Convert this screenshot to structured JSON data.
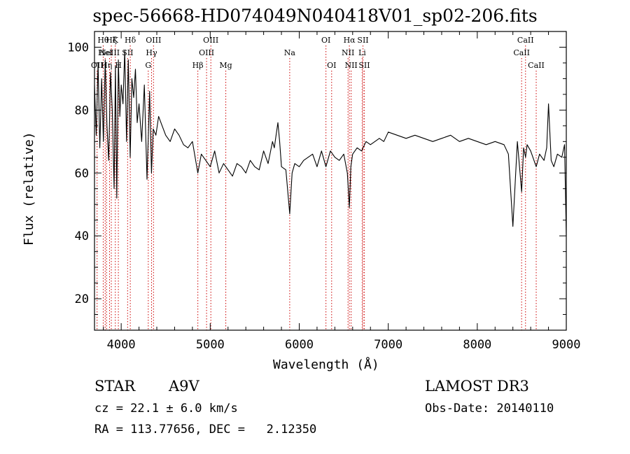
{
  "chart_data": {
    "type": "line",
    "title": "spec-56668-HD074049N040418V01_sp02-206.fits",
    "xlabel": "Wavelength (Å)",
    "ylabel": "Flux (relative)",
    "xlim": [
      3700,
      9000
    ],
    "ylim": [
      10,
      105
    ],
    "xticks": [
      4000,
      5000,
      6000,
      7000,
      8000,
      9000
    ],
    "yticks": [
      20,
      40,
      60,
      80,
      100
    ],
    "grid": false,
    "line_color": "#000000",
    "marker_color": "#cc0000",
    "series": [
      {
        "x": [
          3700,
          3720,
          3740,
          3760,
          3780,
          3800,
          3820,
          3840,
          3860,
          3880,
          3900,
          3920,
          3935,
          3950,
          3968,
          3985,
          4000,
          4020,
          4040,
          4060,
          4080,
          4101,
          4120,
          4140,
          4160,
          4180,
          4200,
          4230,
          4260,
          4290,
          4320,
          4340,
          4360,
          4390,
          4420,
          4460,
          4500,
          4550,
          4600,
          4650,
          4700,
          4750,
          4800,
          4861,
          4900,
          4950,
          5000,
          5050,
          5100,
          5150,
          5200,
          5250,
          5300,
          5350,
          5400,
          5450,
          5500,
          5550,
          5600,
          5650,
          5700,
          5720,
          5740,
          5760,
          5780,
          5800,
          5850,
          5893,
          5920,
          5950,
          6000,
          6050,
          6100,
          6150,
          6200,
          6250,
          6300,
          6350,
          6400,
          6450,
          6500,
          6540,
          6563,
          6580,
          6600,
          6650,
          6700,
          6750,
          6800,
          6850,
          6900,
          6950,
          7000,
          7100,
          7200,
          7300,
          7400,
          7500,
          7600,
          7700,
          7800,
          7900,
          8000,
          8100,
          8200,
          8300,
          8350,
          8400,
          8450,
          8498,
          8520,
          8542,
          8560,
          8600,
          8662,
          8700,
          8750,
          8780,
          8800,
          8830,
          8860,
          8900,
          8950,
          8980,
          9000
        ],
        "y": [
          88,
          72,
          95,
          68,
          90,
          70,
          96,
          75,
          64,
          92,
          80,
          55,
          94,
          52,
          96,
          78,
          88,
          82,
          99,
          70,
          96,
          65,
          90,
          84,
          93,
          76,
          82,
          70,
          88,
          58,
          86,
          60,
          74,
          72,
          78,
          75,
          72,
          70,
          74,
          72,
          69,
          68,
          70,
          60,
          66,
          64,
          62,
          67,
          60,
          63,
          61,
          59,
          63,
          62,
          60,
          64,
          62,
          61,
          67,
          63,
          70,
          68,
          72,
          76,
          70,
          62,
          61,
          47,
          60,
          63,
          62,
          64,
          65,
          66,
          62,
          67,
          62,
          67,
          65,
          64,
          66,
          60,
          49,
          62,
          66,
          68,
          67,
          70,
          69,
          70,
          71,
          70,
          73,
          72,
          71,
          72,
          71,
          70,
          71,
          72,
          70,
          71,
          70,
          69,
          70,
          69,
          66,
          43,
          70,
          54,
          68,
          65,
          69,
          67,
          62,
          66,
          64,
          68,
          82,
          64,
          62,
          66,
          65,
          69,
          40
        ]
      }
    ],
    "line_markers": [
      {
        "x": 3729,
        "label": "OII",
        "row": 3
      },
      {
        "x": 3798,
        "label": "Hθ",
        "row": 1
      },
      {
        "x": 3820,
        "label": "HeI",
        "row": 2
      },
      {
        "x": 3835,
        "label": "Hη",
        "row": 3
      },
      {
        "x": 3869,
        "label": "NeIII",
        "row": 2
      },
      {
        "x": 3889,
        "label": "Hζ",
        "row": 1
      },
      {
        "x": 3934,
        "label": "K",
        "row": 1
      },
      {
        "x": 3968,
        "label": "H",
        "row": 3
      },
      {
        "x": 4072,
        "label": "SII",
        "row": 2
      },
      {
        "x": 4102,
        "label": "Hδ",
        "row": 1
      },
      {
        "x": 4304,
        "label": "G",
        "row": 3
      },
      {
        "x": 4341,
        "label": "Hγ",
        "row": 2
      },
      {
        "x": 4363,
        "label": "OIII",
        "row": 1
      },
      {
        "x": 4861,
        "label": "Hβ",
        "row": 3
      },
      {
        "x": 4959,
        "label": "OIII",
        "row": 2
      },
      {
        "x": 5007,
        "label": "OIII",
        "row": 1
      },
      {
        "x": 5175,
        "label": "Mg",
        "row": 3
      },
      {
        "x": 5893,
        "label": "Na",
        "row": 2
      },
      {
        "x": 6300,
        "label": "OI",
        "row": 1
      },
      {
        "x": 6364,
        "label": "OI",
        "row": 3
      },
      {
        "x": 6548,
        "label": "NII",
        "row": 2
      },
      {
        "x": 6563,
        "label": "Hα",
        "row": 1
      },
      {
        "x": 6583,
        "label": "NII",
        "row": 3
      },
      {
        "x": 6707,
        "label": "Li",
        "row": 2
      },
      {
        "x": 6716,
        "label": "SII",
        "row": 1
      },
      {
        "x": 6731,
        "label": "SII",
        "row": 3
      },
      {
        "x": 8498,
        "label": "CaII",
        "row": 2
      },
      {
        "x": 8542,
        "label": "CaII",
        "row": 1
      },
      {
        "x": 8662,
        "label": "CaII",
        "row": 3
      }
    ]
  },
  "info": {
    "object_class": "STAR",
    "subclass": "A9V",
    "survey": "LAMOST DR3",
    "cz": "cz = 22.1 ± 6.0 km/s",
    "obs_date": "Obs-Date: 20140110",
    "coords": "RA = 113.77656, DEC =   2.12350"
  }
}
